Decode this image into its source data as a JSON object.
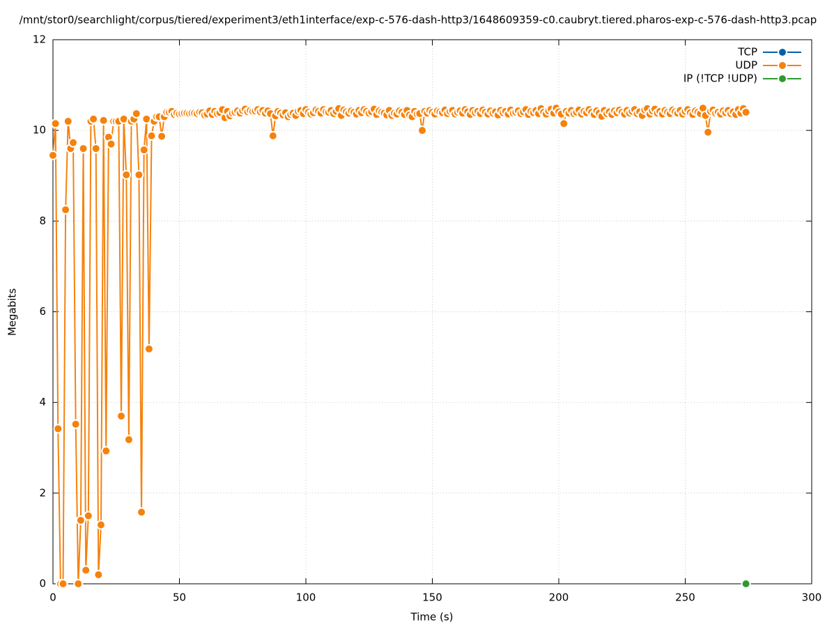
{
  "chart_data": {
    "type": "line",
    "title": "/mnt/stor0/searchlight/corpus/tiered/experiment3/eth1interface/exp-c-576-dash-http3/1648609359-c0.caubryt.tiered.pharos-exp-c-576-dash-http3.pcap",
    "x_label": "Time (s)",
    "y_label": "Megabits",
    "xlim": [
      0,
      300
    ],
    "xticks": [
      0,
      50,
      100,
      150,
      200,
      250,
      300
    ],
    "ylim": [
      0,
      12
    ],
    "yticks": [
      0,
      2,
      4,
      6,
      8,
      10,
      12
    ],
    "grid": true,
    "legend": "top-right",
    "series": [
      {
        "name": "TCP",
        "color": "#0060ad",
        "x": [],
        "values": []
      },
      {
        "name": "UDP",
        "color": "#f5820d",
        "x": [
          0,
          1,
          2,
          3,
          4,
          5,
          6,
          7,
          8,
          9,
          10,
          11,
          12,
          13,
          14,
          15,
          16,
          17,
          18,
          19,
          20,
          21,
          22,
          23,
          24,
          25,
          26,
          27,
          28,
          29,
          30,
          31,
          32,
          33,
          34,
          35,
          36,
          37,
          38,
          39,
          40,
          41,
          42,
          43,
          44,
          45,
          46,
          47,
          48,
          49,
          50,
          51,
          52,
          53,
          54,
          55,
          56,
          57,
          58,
          59,
          60,
          61,
          62,
          63,
          64,
          65,
          66,
          67,
          68,
          69,
          70,
          71,
          72,
          73,
          74,
          75,
          76,
          77,
          78,
          79,
          80,
          81,
          82,
          83,
          84,
          85,
          86,
          87,
          88,
          89,
          90,
          91,
          92,
          93,
          94,
          95,
          96,
          97,
          98,
          99,
          100,
          101,
          102,
          103,
          104,
          105,
          106,
          107,
          108,
          109,
          110,
          111,
          112,
          113,
          114,
          115,
          116,
          117,
          118,
          119,
          120,
          121,
          122,
          123,
          124,
          125,
          126,
          127,
          128,
          129,
          130,
          131,
          132,
          133,
          134,
          135,
          136,
          137,
          138,
          139,
          140,
          141,
          142,
          143,
          144,
          145,
          146,
          147,
          148,
          149,
          150,
          151,
          152,
          153,
          154,
          155,
          156,
          157,
          158,
          159,
          160,
          161,
          162,
          163,
          164,
          165,
          166,
          167,
          168,
          169,
          170,
          171,
          172,
          173,
          174,
          175,
          176,
          177,
          178,
          179,
          180,
          181,
          182,
          183,
          184,
          185,
          186,
          187,
          188,
          189,
          190,
          191,
          192,
          193,
          194,
          195,
          196,
          197,
          198,
          199,
          200,
          201,
          202,
          203,
          204,
          205,
          206,
          207,
          208,
          209,
          210,
          211,
          212,
          213,
          214,
          215,
          216,
          217,
          218,
          219,
          220,
          221,
          222,
          223,
          224,
          225,
          226,
          227,
          228,
          229,
          230,
          231,
          232,
          233,
          234,
          235,
          236,
          237,
          238,
          239,
          240,
          241,
          242,
          243,
          244,
          245,
          246,
          247,
          248,
          249,
          250,
          251,
          252,
          253,
          254,
          255,
          256,
          257,
          258,
          259,
          260,
          261,
          262,
          263,
          264,
          265,
          266,
          267,
          268,
          269,
          270,
          271,
          272,
          273,
          274
        ],
        "values": [
          9.45,
          10.15,
          3.42,
          0,
          0,
          8.25,
          10.2,
          9.6,
          9.73,
          3.52,
          0,
          1.4,
          9.6,
          0.3,
          1.5,
          10.2,
          10.25,
          9.6,
          0.2,
          1.3,
          10.22,
          2.93,
          9.85,
          9.7,
          10.2,
          10.2,
          10.2,
          3.7,
          10.25,
          9.02,
          3.18,
          10.2,
          10.25,
          10.37,
          9.02,
          1.58,
          9.57,
          10.25,
          5.18,
          9.88,
          10.2,
          10.3,
          10.3,
          9.87,
          10.3,
          10.4,
          10.4,
          10.42,
          10.35,
          10.38,
          10.36,
          10.37,
          10.38,
          10.38,
          10.37,
          10.38,
          10.38,
          10.37,
          10.4,
          10.39,
          10.34,
          10.36,
          10.43,
          10.35,
          10.42,
          10.37,
          10.39,
          10.46,
          10.28,
          10.42,
          10.32,
          10.38,
          10.4,
          10.43,
          10.38,
          10.44,
          10.47,
          10.41,
          10.44,
          10.42,
          10.43,
          10.46,
          10.41,
          10.44,
          10.38,
          10.43,
          10.37,
          9.88,
          10.32,
          10.42,
          10.38,
          10.34,
          10.39,
          10.3,
          10.35,
          10.38,
          10.33,
          10.42,
          10.44,
          10.37,
          10.46,
          10.4,
          10.36,
          10.39,
          10.45,
          10.42,
          10.38,
          10.46,
          10.41,
          10.4,
          10.44,
          10.37,
          10.42,
          10.48,
          10.33,
          10.45,
          10.41,
          10.38,
          10.43,
          10.4,
          10.36,
          10.44,
          10.39,
          10.46,
          10.42,
          10.38,
          10.41,
          10.47,
          10.35,
          10.43,
          10.4,
          10.38,
          10.34,
          10.44,
          10.33,
          10.38,
          10.36,
          10.43,
          10.4,
          10.35,
          10.44,
          10.34,
          10.3,
          10.42,
          10.36,
          10.37,
          10.0,
          10.42,
          10.38,
          10.44,
          10.4,
          10.36,
          10.43,
          10.41,
          10.39,
          10.45,
          10.37,
          10.42,
          10.44,
          10.36,
          10.4,
          10.43,
          10.38,
          10.46,
          10.41,
          10.35,
          10.44,
          10.39,
          10.42,
          10.37,
          10.45,
          10.4,
          10.36,
          10.43,
          10.38,
          10.41,
          10.34,
          10.44,
          10.39,
          10.42,
          10.36,
          10.45,
          10.38,
          10.4,
          10.43,
          10.37,
          10.41,
          10.46,
          10.35,
          10.42,
          10.39,
          10.44,
          10.37,
          10.48,
          10.4,
          10.36,
          10.43,
          10.47,
          10.38,
          10.49,
          10.41,
          10.36,
          10.15,
          10.42,
          10.38,
          10.44,
          10.37,
          10.4,
          10.45,
          10.36,
          10.42,
          10.39,
          10.46,
          10.4,
          10.35,
          10.43,
          10.38,
          10.31,
          10.44,
          10.37,
          10.41,
          10.35,
          10.43,
          10.39,
          10.45,
          10.4,
          10.36,
          10.44,
          10.38,
          10.42,
          10.46,
          10.37,
          10.41,
          10.33,
          10.45,
          10.48,
          10.36,
          10.43,
          10.47,
          10.38,
          10.42,
          10.36,
          10.44,
          10.4,
          10.37,
          10.45,
          10.41,
          10.38,
          10.44,
          10.36,
          10.42,
          10.46,
          10.39,
          10.35,
          10.43,
          10.4,
          10.37,
          10.49,
          10.33,
          9.96,
          10.42,
          10.45,
          10.38,
          10.4,
          10.36,
          10.43,
          10.39,
          10.44,
          10.37,
          10.41,
          10.35,
          10.46,
          10.38,
          10.48,
          10.4
        ]
      },
      {
        "name": "IP (!TCP  !UDP)",
        "color": "#2e9a2e",
        "x": [
          274
        ],
        "values": [
          0
        ]
      }
    ]
  }
}
